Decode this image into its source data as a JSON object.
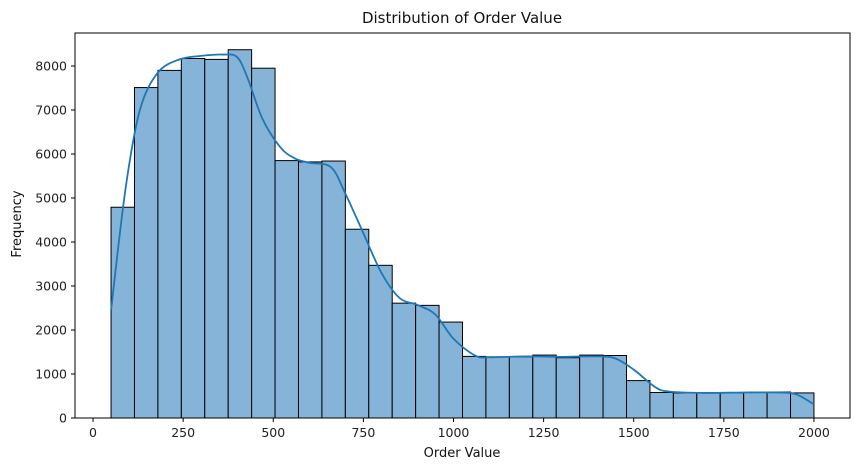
{
  "chart_data": {
    "type": "bar",
    "title": "Distribution of Order Value",
    "xlabel": "Order Value",
    "ylabel": "Frequency",
    "xlim": [
      -50,
      2100
    ],
    "ylim": [
      0,
      8750
    ],
    "xticks": [
      0,
      250,
      500,
      750,
      1000,
      1250,
      1500,
      1750,
      2000
    ],
    "yticks": [
      0,
      1000,
      2000,
      3000,
      4000,
      5000,
      6000,
      7000,
      8000
    ],
    "grid": false,
    "bin_edges": [
      50,
      115,
      180,
      245,
      310,
      375,
      440,
      505,
      570,
      635,
      700,
      765,
      830,
      895,
      960,
      1025,
      1090,
      1155,
      1220,
      1285,
      1350,
      1415,
      1480,
      1545,
      1610,
      1675,
      1740,
      1805,
      1870,
      1935,
      2000
    ],
    "values": [
      4790,
      7510,
      7900,
      8170,
      8150,
      8370,
      7950,
      5850,
      5820,
      5840,
      4290,
      3470,
      2610,
      2560,
      2180,
      1400,
      1390,
      1390,
      1430,
      1370,
      1430,
      1420,
      850,
      580,
      570,
      570,
      570,
      580,
      590,
      570
    ],
    "kde": {
      "x": [
        50,
        90,
        130,
        180,
        240,
        300,
        360,
        400,
        430,
        470,
        520,
        560,
        600,
        660,
        700,
        750,
        800,
        850,
        900,
        950,
        1000,
        1060,
        1100,
        1200,
        1300,
        1400,
        1450,
        1500,
        1560,
        1600,
        1700,
        1800,
        1900,
        1950,
        2000
      ],
      "y": [
        2450,
        5200,
        7000,
        7850,
        8150,
        8230,
        8260,
        8200,
        7700,
        6800,
        6150,
        5900,
        5800,
        5700,
        5100,
        4200,
        3300,
        2730,
        2570,
        2350,
        1800,
        1420,
        1380,
        1400,
        1390,
        1400,
        1350,
        1100,
        700,
        600,
        570,
        580,
        580,
        540,
        310
      ]
    },
    "bar_fill": "#86b4d8",
    "bar_edge": "#000000",
    "kde_color": "#1f77b4"
  }
}
